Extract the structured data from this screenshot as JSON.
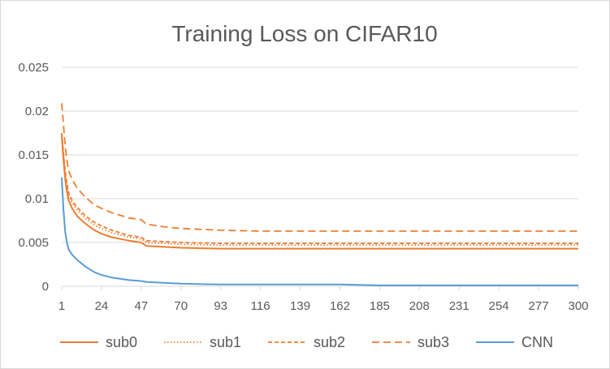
{
  "chart_data": {
    "type": "line",
    "title": "Training Loss on CIFAR10",
    "xlabel": "",
    "ylabel": "",
    "xlim": [
      1,
      300
    ],
    "ylim": [
      0,
      0.025
    ],
    "grid": true,
    "legend_position": "bottom",
    "x_ticks": [
      "1",
      "24",
      "47",
      "70",
      "93",
      "116",
      "139",
      "162",
      "185",
      "208",
      "231",
      "254",
      "277",
      "300"
    ],
    "y_ticks": [
      "0",
      "0.005",
      "0.01",
      "0.015",
      "0.02",
      "0.025"
    ],
    "x": [
      1,
      2,
      3,
      4,
      5,
      7,
      10,
      15,
      20,
      24,
      30,
      40,
      47,
      50,
      60,
      70,
      93,
      116,
      139,
      162,
      185,
      208,
      231,
      254,
      277,
      300
    ],
    "series": [
      {
        "name": "sub0",
        "color": "#ED7D31",
        "dash": "solid",
        "values": [
          0.0172,
          0.0145,
          0.0122,
          0.0108,
          0.0098,
          0.0089,
          0.008,
          0.0071,
          0.0064,
          0.006,
          0.0056,
          0.0052,
          0.005,
          0.0046,
          0.0045,
          0.0044,
          0.0043,
          0.0043,
          0.0043,
          0.0043,
          0.0043,
          0.0043,
          0.0043,
          0.0043,
          0.0043,
          0.0043
        ]
      },
      {
        "name": "sub1",
        "color": "#ED7D31",
        "dash": "dotted",
        "values": [
          0.0174,
          0.015,
          0.0128,
          0.0114,
          0.0104,
          0.0095,
          0.0087,
          0.0077,
          0.007,
          0.0066,
          0.0061,
          0.0056,
          0.0054,
          0.005,
          0.0049,
          0.0048,
          0.0047,
          0.0047,
          0.0047,
          0.0047,
          0.0047,
          0.0047,
          0.0047,
          0.0047,
          0.0047,
          0.0047
        ]
      },
      {
        "name": "sub2",
        "color": "#ED7D31",
        "dash": "dashed",
        "values": [
          0.0175,
          0.0153,
          0.0131,
          0.0117,
          0.0107,
          0.0098,
          0.009,
          0.008,
          0.0073,
          0.0069,
          0.0064,
          0.0058,
          0.0056,
          0.0052,
          0.0051,
          0.005,
          0.0049,
          0.0049,
          0.0049,
          0.0049,
          0.0049,
          0.0049,
          0.0049,
          0.0049,
          0.0049,
          0.0049
        ]
      },
      {
        "name": "sub3",
        "color": "#ED7D31",
        "dash": "longdash",
        "values": [
          0.0209,
          0.0185,
          0.016,
          0.0144,
          0.0132,
          0.0122,
          0.0112,
          0.0101,
          0.0093,
          0.0089,
          0.0084,
          0.0078,
          0.0076,
          0.0071,
          0.0068,
          0.0066,
          0.0064,
          0.0063,
          0.0063,
          0.0063,
          0.0063,
          0.0063,
          0.0063,
          0.0063,
          0.0063,
          0.0063
        ]
      },
      {
        "name": "CNN",
        "color": "#5B9BD5",
        "dash": "solid",
        "values": [
          0.0124,
          0.0088,
          0.0062,
          0.005,
          0.0042,
          0.0036,
          0.003,
          0.0022,
          0.0016,
          0.0013,
          0.001,
          0.0007,
          0.0006,
          0.0005,
          0.0004,
          0.0003,
          0.0002,
          0.0002,
          0.0002,
          0.0002,
          0.0001,
          0.0001,
          0.0001,
          0.0001,
          0.0001,
          0.0001
        ]
      }
    ]
  }
}
